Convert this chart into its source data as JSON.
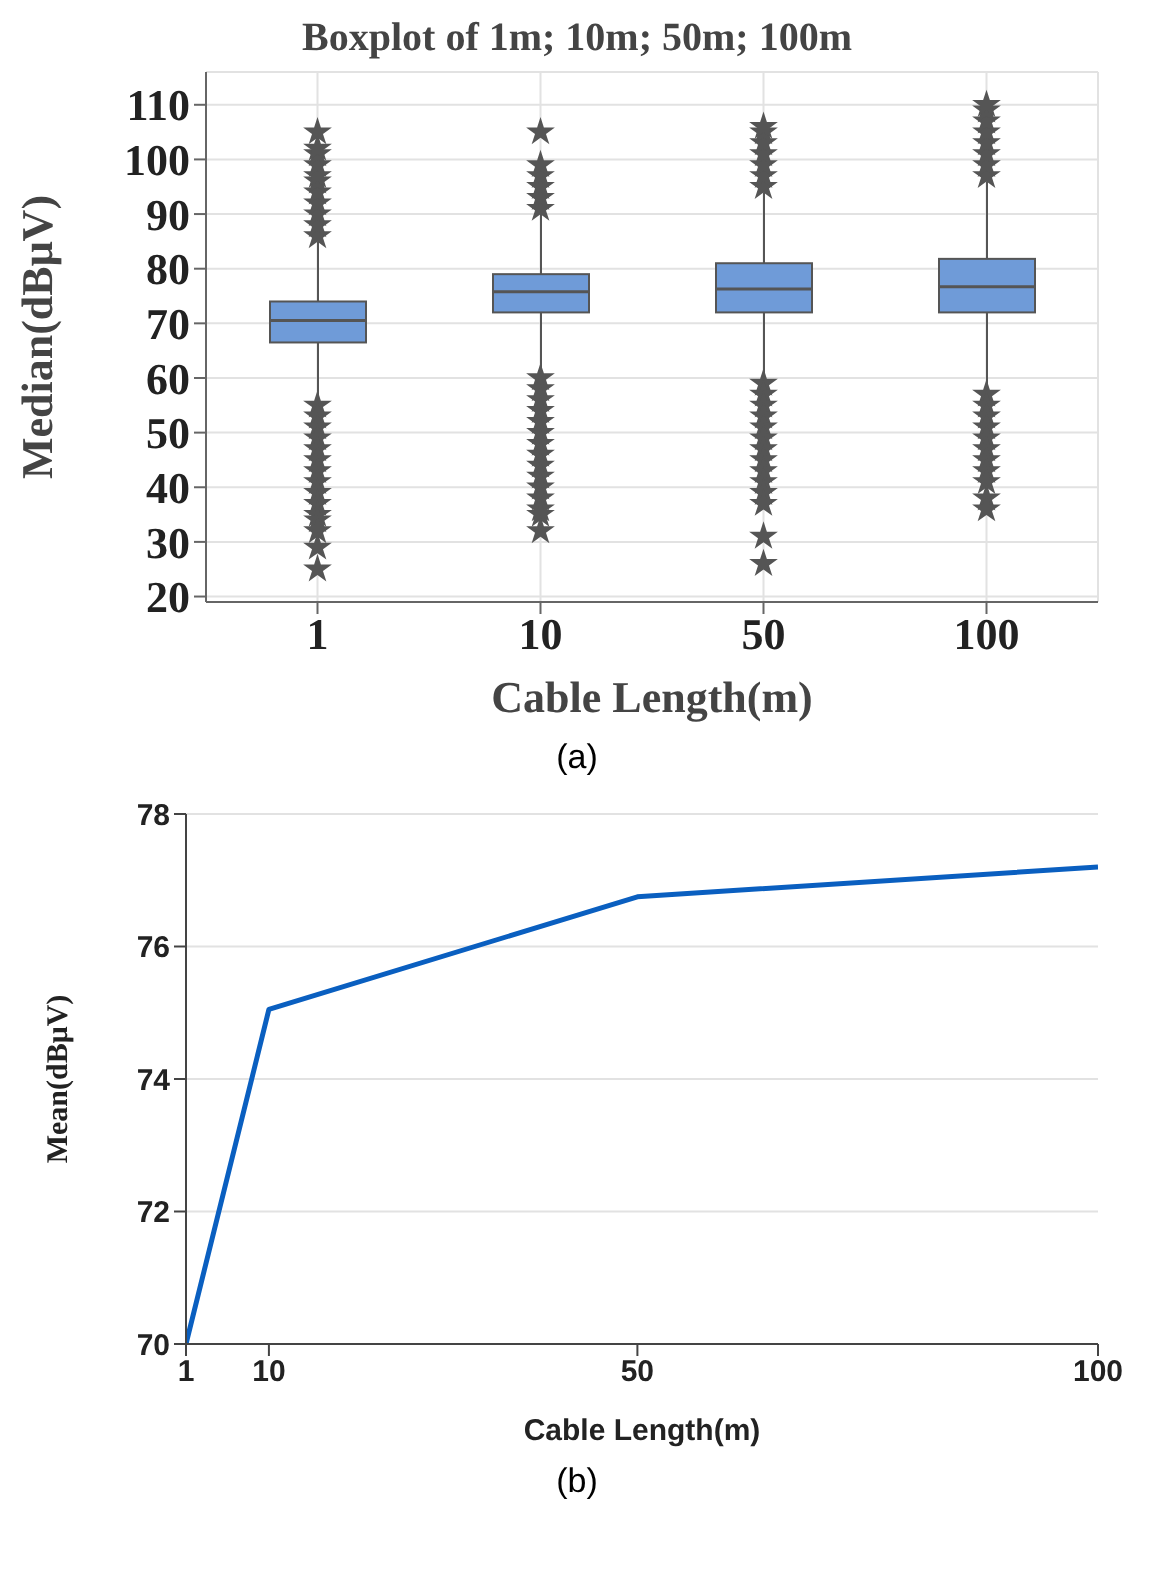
{
  "chart_data": [
    {
      "type": "box",
      "title": "Boxplot of 1m; 10m; 50m; 100m",
      "xlabel": "Cable Length(m)",
      "ylabel": "Median(dBμV)",
      "categories": [
        "1",
        "10",
        "50",
        "100"
      ],
      "color": "#6f9bd8",
      "ylim": [
        19,
        116
      ],
      "yticks": [
        20,
        30,
        40,
        50,
        60,
        70,
        80,
        90,
        100,
        110
      ],
      "grid": true,
      "marker": "star",
      "annotations": [
        "(a)"
      ],
      "boxes": [
        {
          "low": 55.5,
          "q1": 66.5,
          "median": 70.5,
          "q3": 74,
          "high": 85,
          "outliers": [
            86,
            88,
            90,
            92,
            94,
            96,
            97,
            99,
            101,
            102,
            105,
            55,
            53,
            51,
            49,
            47,
            45,
            43,
            41,
            39,
            37,
            35,
            34,
            32,
            29,
            25
          ]
        },
        {
          "low": 61,
          "q1": 72,
          "median": 75.8,
          "q3": 79,
          "high": 90,
          "outliers": [
            91,
            93,
            95,
            97,
            99,
            105,
            60,
            58,
            56,
            54,
            52,
            50,
            48,
            46,
            44,
            42,
            40,
            38,
            36,
            35,
            32
          ]
        },
        {
          "low": 59.5,
          "q1": 72,
          "median": 76.3,
          "q3": 81,
          "high": 94,
          "outliers": [
            95,
            97,
            99,
            101,
            103,
            105,
            106,
            59,
            57,
            55,
            53,
            51,
            49,
            47,
            45,
            43,
            41,
            39,
            37,
            31,
            26
          ]
        },
        {
          "low": 57.5,
          "q1": 72,
          "median": 76.7,
          "q3": 81.8,
          "high": 96,
          "outliers": [
            97,
            99,
            101,
            103,
            105,
            107,
            109,
            110,
            57,
            55,
            53,
            51,
            49,
            47,
            45,
            43,
            41,
            38,
            36
          ]
        }
      ]
    },
    {
      "type": "line",
      "xlabel": "Cable Length(m)",
      "ylabel": "Mean(dBμV)",
      "x": [
        1,
        10,
        50,
        100
      ],
      "xlim": [
        1,
        100
      ],
      "xticks": [
        1,
        10,
        50,
        100
      ],
      "ylim": [
        70,
        78
      ],
      "yticks": [
        70,
        72,
        74,
        76,
        78
      ],
      "grid": "y",
      "annotations": [
        "(b)"
      ],
      "series": [
        {
          "color": "#0a5fc0",
          "values": [
            70,
            75.05,
            76.75,
            77.2
          ]
        }
      ]
    }
  ]
}
